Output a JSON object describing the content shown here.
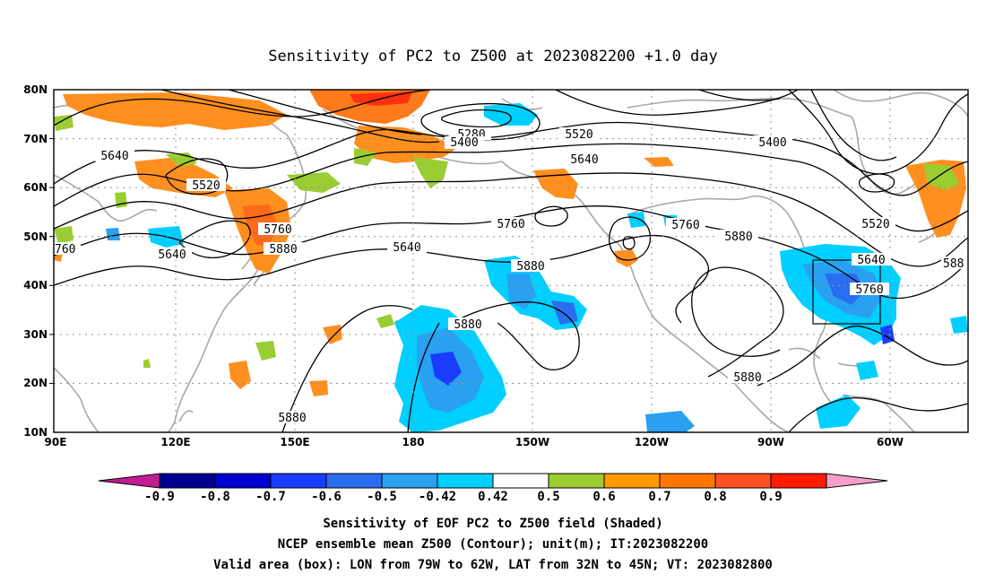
{
  "title": "Sensitivity of PC2 to Z500 at 2023082200 +1.0 day",
  "lat_labels": [
    "80N",
    "70N",
    "60N",
    "50N",
    "40N",
    "30N",
    "20N",
    "10N"
  ],
  "lon_labels": [
    "90E",
    "120E",
    "150E",
    "180",
    "150W",
    "120W",
    "90W",
    "60W"
  ],
  "contour_labels": [
    "5280",
    "5400",
    "5520",
    "5400",
    "5640",
    "5520",
    "5640",
    "5760",
    "5880",
    "5640",
    "5640",
    "5760",
    "5880",
    "5760",
    "5880",
    "5640",
    "5760",
    "5880",
    "5520",
    "5640",
    "5760",
    "588",
    "5880",
    "5880",
    "760"
  ],
  "colorbar": {
    "colors": [
      "#c21d8f",
      "#00008f",
      "#0000d0",
      "#1a3cff",
      "#2a6ef0",
      "#2aa0f0",
      "#00cfff",
      "#ffffff",
      "#9acd32",
      "#ff9900",
      "#ff7700",
      "#ff5020",
      "#ff1a00",
      "#f5a0c8"
    ],
    "labels": [
      "-0.9",
      "-0.8",
      "-0.7",
      "-0.6",
      "-0.5",
      "-0.42",
      "0.42",
      "0.5",
      "0.6",
      "0.7",
      "0.8",
      "0.9"
    ]
  },
  "caption": {
    "line1": "Sensitivity of EOF PC2 to Z500 field (Shaded)",
    "line2": "NCEP ensemble mean Z500 (Contour); unit(m); IT:2023082200",
    "line3": "Valid area (box): LON from 79W to 62W, LAT from 32N to 45N; VT: 2023082800"
  }
}
